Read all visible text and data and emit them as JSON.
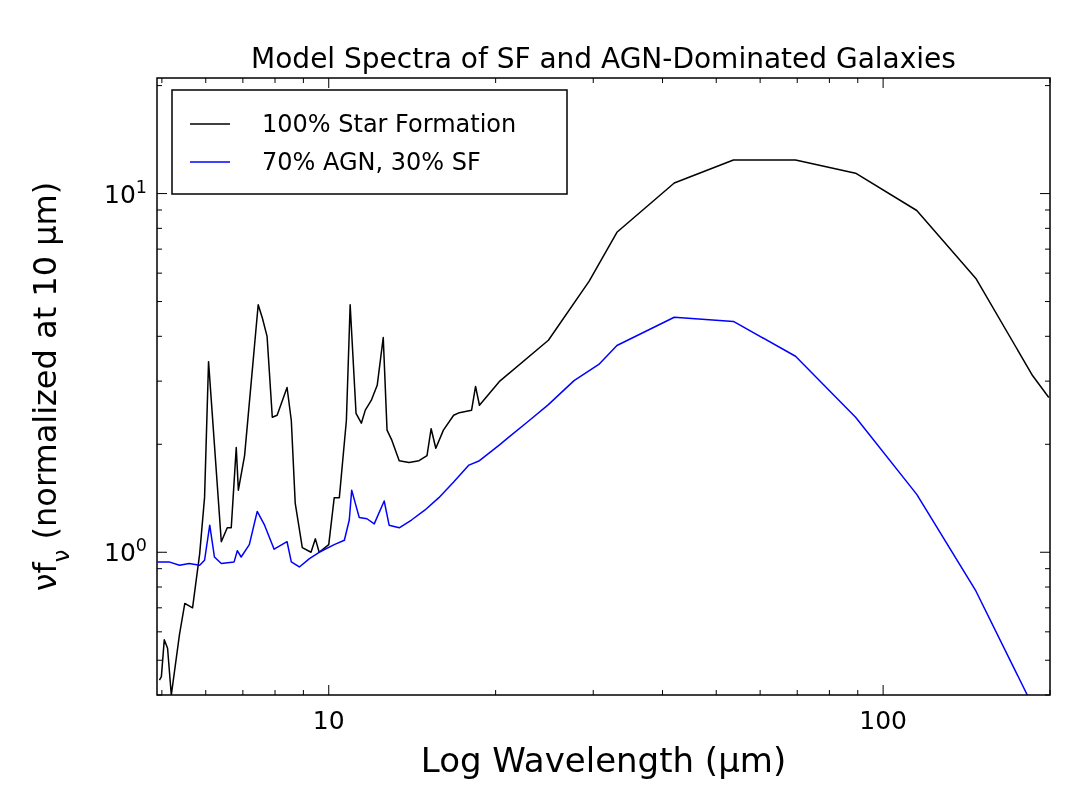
{
  "chart_data": {
    "type": "line",
    "title": "Model Spectra of SF and AGN-Dominated Galaxies",
    "xlabel": "Log Wavelength (μm)",
    "ylabel": "νf$_{ν}$ (normalized at 10 μm)",
    "log": "xy",
    "grid": false,
    "legend": "top left",
    "line_style": "solid",
    "marker": "none",
    "xlim": [
      4.9,
      200
    ],
    "ylim": [
      0.4,
      21
    ],
    "xticks": [
      {
        "value": 5,
        "label": null
      },
      {
        "value": 6,
        "label": null
      },
      {
        "value": 7,
        "label": null
      },
      {
        "value": 8,
        "label": null
      },
      {
        "value": 9,
        "label": null
      },
      10,
      {
        "value": 20,
        "label": null
      },
      {
        "value": 30,
        "label": null
      },
      {
        "value": 40,
        "label": null
      },
      {
        "value": 50,
        "label": null
      },
      {
        "value": 60,
        "label": null
      },
      {
        "value": 70,
        "label": null
      },
      {
        "value": 80,
        "label": null
      },
      {
        "value": 90,
        "label": null
      },
      100,
      {
        "value": 200,
        "label": null
      }
    ],
    "yticks": [
      {
        "value": 0.4,
        "label": null
      },
      {
        "value": 0.5,
        "label": null
      },
      {
        "value": 0.6,
        "label": null
      },
      {
        "value": 0.7,
        "label": null
      },
      {
        "value": 0.8,
        "label": null
      },
      {
        "value": 0.9,
        "label": null
      },
      {
        "value": 1,
        "label": "10$^{0}$"
      },
      {
        "value": 2,
        "label": null
      },
      {
        "value": 3,
        "label": null
      },
      {
        "value": 4,
        "label": null
      },
      {
        "value": 5,
        "label": null
      },
      {
        "value": 6,
        "label": null
      },
      {
        "value": 7,
        "label": null
      },
      {
        "value": 8,
        "label": null
      },
      {
        "value": 9,
        "label": null
      },
      {
        "value": 10,
        "label": "10$^{1}$"
      },
      {
        "value": 20,
        "label": null
      }
    ],
    "series": [
      {
        "name": "100% Star Formation",
        "color": "#000000",
        "x": [
          4.95,
          4.99,
          5.05,
          5.12,
          5.2,
          5.38,
          5.5,
          5.68,
          5.85,
          5.97,
          6.07,
          6.4,
          6.56,
          6.67,
          6.81,
          6.87,
          7.05,
          7.46,
          7.59,
          7.74,
          7.91,
          8.07,
          8.41,
          8.56,
          8.7,
          8.96,
          9.29,
          9.46,
          9.61,
          10.0,
          10.23,
          10.45,
          10.76,
          10.93,
          11.2,
          11.45,
          11.64,
          11.93,
          12.23,
          12.54,
          12.74,
          13.0,
          13.4,
          13.96,
          14.55,
          15.04,
          15.3,
          15.6,
          16.1,
          16.8,
          17.2,
          18.1,
          18.4,
          18.7,
          20.3,
          24.9,
          29.5,
          33.1,
          42.0,
          53.7,
          69.5,
          89.2,
          115,
          147,
          186,
          199
        ],
        "values": [
          0.44,
          0.45,
          0.57,
          0.54,
          0.4,
          0.59,
          0.72,
          0.7,
          0.99,
          1.42,
          3.4,
          1.07,
          1.17,
          1.17,
          1.96,
          1.49,
          1.86,
          4.9,
          4.5,
          4.0,
          2.38,
          2.41,
          2.88,
          2.33,
          1.37,
          1.03,
          1.0,
          1.09,
          1.0,
          1.05,
          1.42,
          1.42,
          2.33,
          4.9,
          2.44,
          2.29,
          2.49,
          2.65,
          2.92,
          3.97,
          2.19,
          2.05,
          1.8,
          1.78,
          1.8,
          1.86,
          2.21,
          1.95,
          2.19,
          2.41,
          2.45,
          2.49,
          2.9,
          2.57,
          2.99,
          3.9,
          5.7,
          7.8,
          10.7,
          12.4,
          12.4,
          11.4,
          8.97,
          5.8,
          3.11,
          2.7
        ]
      },
      {
        "name": "70% AGN, 30% SF",
        "color": "#0000ff",
        "x": [
          4.91,
          5.15,
          5.38,
          5.6,
          5.85,
          5.97,
          6.1,
          6.22,
          6.4,
          6.75,
          6.84,
          6.95,
          7.19,
          7.43,
          7.66,
          7.97,
          8.41,
          8.56,
          8.85,
          9.23,
          9.61,
          10.23,
          10.67,
          10.89,
          11.0,
          11.35,
          11.72,
          12.08,
          12.59,
          12.85,
          13.4,
          14.1,
          14.9,
          15.8,
          16.8,
          17.9,
          18.7,
          20.3,
          21.1,
          23.0,
          24.9,
          27.7,
          30.7,
          33.1,
          42.0,
          53.7,
          69.5,
          89.2,
          115,
          147,
          182
        ],
        "values": [
          0.94,
          0.94,
          0.92,
          0.93,
          0.92,
          0.95,
          1.19,
          0.97,
          0.93,
          0.94,
          1.01,
          0.97,
          1.05,
          1.3,
          1.19,
          1.02,
          1.07,
          0.94,
          0.91,
          0.96,
          1.0,
          1.05,
          1.08,
          1.23,
          1.49,
          1.25,
          1.24,
          1.2,
          1.39,
          1.19,
          1.17,
          1.23,
          1.31,
          1.42,
          1.57,
          1.75,
          1.8,
          1.99,
          2.09,
          2.33,
          2.58,
          3.01,
          3.34,
          3.77,
          4.52,
          4.4,
          3.52,
          2.38,
          1.45,
          0.78,
          0.4
        ]
      }
    ]
  }
}
